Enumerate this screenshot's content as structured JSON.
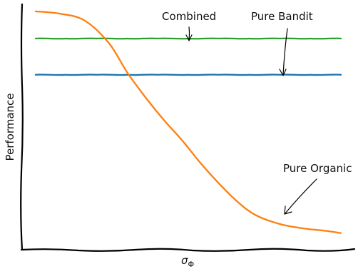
{
  "chart_data": {
    "type": "line",
    "title": "",
    "xlabel": "σ",
    "xlabel_subscript": "Φ",
    "ylabel": "Performance",
    "grid": false,
    "xlim": [
      0,
      1
    ],
    "ylim": [
      0,
      1
    ],
    "series": [
      {
        "name": "Combined",
        "color": "#2ca02c",
        "x": [
          0,
          0.1,
          0.2,
          0.3,
          0.4,
          0.5,
          0.6,
          0.7,
          0.8,
          0.9,
          1.0
        ],
        "y": [
          0.88,
          0.88,
          0.88,
          0.88,
          0.88,
          0.88,
          0.88,
          0.88,
          0.88,
          0.88,
          0.88
        ]
      },
      {
        "name": "Pure Bandit",
        "color": "#1f77b4",
        "x": [
          0,
          0.1,
          0.2,
          0.3,
          0.4,
          0.5,
          0.6,
          0.7,
          0.8,
          0.9,
          1.0
        ],
        "y": [
          0.72,
          0.72,
          0.72,
          0.72,
          0.72,
          0.72,
          0.72,
          0.72,
          0.72,
          0.72,
          0.72
        ]
      },
      {
        "name": "Pure Organic",
        "color": "#ff7f0e",
        "x": [
          0,
          0.08,
          0.16,
          0.24,
          0.3,
          0.36,
          0.42,
          0.48,
          0.54,
          0.6,
          0.66,
          0.72,
          0.8,
          0.88,
          0.95,
          1.0
        ],
        "y": [
          1.0,
          0.99,
          0.96,
          0.86,
          0.73,
          0.62,
          0.52,
          0.43,
          0.33,
          0.24,
          0.16,
          0.1,
          0.06,
          0.04,
          0.03,
          0.02
        ]
      }
    ],
    "annotations": [
      {
        "text": "Combined",
        "target_series": "Combined"
      },
      {
        "text": "Pure Bandit",
        "target_series": "Pure Bandit"
      },
      {
        "text": "Pure Organic",
        "target_series": "Pure Organic"
      }
    ]
  }
}
